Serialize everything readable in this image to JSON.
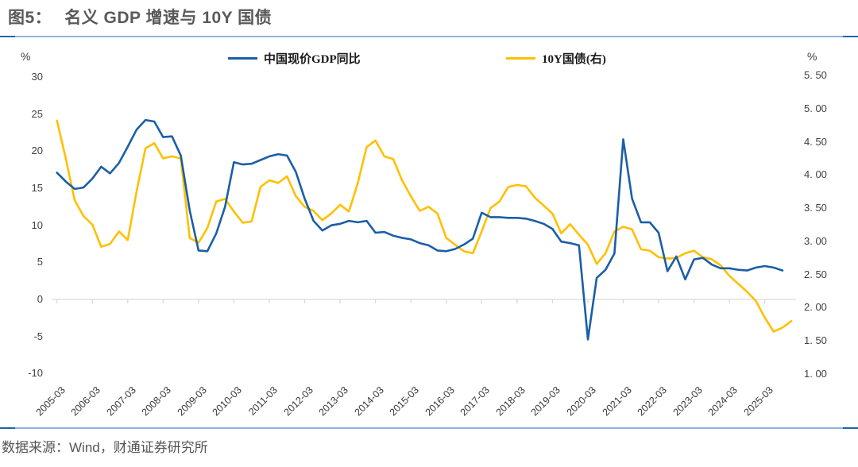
{
  "title": {
    "prefix": "图5：",
    "text": "名义 GDP 增速与 10Y 国债"
  },
  "legend": [
    {
      "label": "中国现价GDP同比",
      "color": "#1b5ea8"
    },
    {
      "label": "10Y国债(右)",
      "color": "#ffc000"
    }
  ],
  "left_axis": {
    "unit": "%",
    "ticks": [
      "30",
      "25",
      "20",
      "15",
      "10",
      "5",
      "0",
      "-5",
      "-10"
    ]
  },
  "right_axis": {
    "unit": "%",
    "ticks": [
      "5. 50",
      "5. 00",
      "4. 50",
      "4. 00",
      "3. 50",
      "3. 00",
      "2. 50",
      "2. 00",
      "1. 50",
      "1. 00"
    ]
  },
  "x_axis": {
    "labels": [
      "2005-03",
      "2006-03",
      "2007-03",
      "2008-03",
      "2009-03",
      "2010-03",
      "2011-03",
      "2012-03",
      "2013-03",
      "2014-03",
      "2015-03",
      "2016-03",
      "2017-03",
      "2018-03",
      "2019-03",
      "2020-03",
      "2021-03",
      "2022-03",
      "2023-03",
      "2024-03",
      "2025-03"
    ]
  },
  "footer": {
    "source_note": "数据来源：Wind，财通证券研究所"
  },
  "colors": {
    "accent_rule_light": "#8fb3db",
    "accent_rule_dark": "#2263a7",
    "gridline": "#d9d9d9"
  },
  "chart_data": {
    "type": "line",
    "title": "名义 GDP 增速与 10Y 国债",
    "x_start": "2005-Q1",
    "frequency": "quarterly",
    "legend_position": "top",
    "grid": "zero-line-only",
    "left_ylim": [
      -10,
      30
    ],
    "right_ylim": [
      1.0,
      5.5
    ],
    "series": [
      {
        "name": "中国现价GDP同比",
        "axis": "left",
        "unit": "%",
        "color": "#1b5ea8",
        "values": [
          17.1,
          15.9,
          14.9,
          15.1,
          16.3,
          17.9,
          17.0,
          18.4,
          20.6,
          22.9,
          24.2,
          24.0,
          21.9,
          22.0,
          19.4,
          12.0,
          6.6,
          6.5,
          8.9,
          12.5,
          18.5,
          18.2,
          18.3,
          18.8,
          19.3,
          19.6,
          19.4,
          17.2,
          13.6,
          10.6,
          9.3,
          10.0,
          10.2,
          10.6,
          10.4,
          10.6,
          9.0,
          9.1,
          8.6,
          8.3,
          8.1,
          7.6,
          7.3,
          6.6,
          6.5,
          6.8,
          7.4,
          8.2,
          11.7,
          11.1,
          11.1,
          11.0,
          11.0,
          10.9,
          10.6,
          10.2,
          9.5,
          7.8,
          7.6,
          7.3,
          -5.4,
          2.9,
          4.0,
          6.2,
          21.6,
          13.6,
          10.4,
          10.4,
          9.0,
          3.8,
          5.8,
          2.7,
          5.4,
          5.6,
          4.7,
          4.2,
          4.2,
          4.0,
          3.9,
          4.3,
          4.5,
          4.3,
          3.9
        ]
      },
      {
        "name": "10Y国债(右)",
        "axis": "right",
        "unit": "%",
        "color": "#ffc000",
        "values": [
          4.82,
          4.25,
          3.62,
          3.38,
          3.25,
          2.92,
          2.96,
          3.15,
          3.02,
          3.75,
          4.4,
          4.48,
          4.25,
          4.28,
          4.25,
          3.05,
          2.98,
          3.2,
          3.6,
          3.64,
          3.45,
          3.28,
          3.3,
          3.82,
          3.92,
          3.88,
          3.98,
          3.68,
          3.52,
          3.46,
          3.32,
          3.42,
          3.55,
          3.45,
          3.88,
          4.42,
          4.52,
          4.28,
          4.24,
          3.92,
          3.68,
          3.46,
          3.52,
          3.42,
          3.05,
          2.95,
          2.85,
          2.82,
          3.15,
          3.5,
          3.6,
          3.82,
          3.85,
          3.83,
          3.66,
          3.54,
          3.42,
          3.12,
          3.26,
          3.1,
          2.95,
          2.66,
          2.82,
          3.15,
          3.22,
          3.18,
          2.88,
          2.86,
          2.76,
          2.74,
          2.75,
          2.82,
          2.86,
          2.76,
          2.73,
          2.64,
          2.48,
          2.36,
          2.24,
          2.1,
          1.85,
          1.64,
          1.7,
          1.8
        ]
      }
    ]
  }
}
